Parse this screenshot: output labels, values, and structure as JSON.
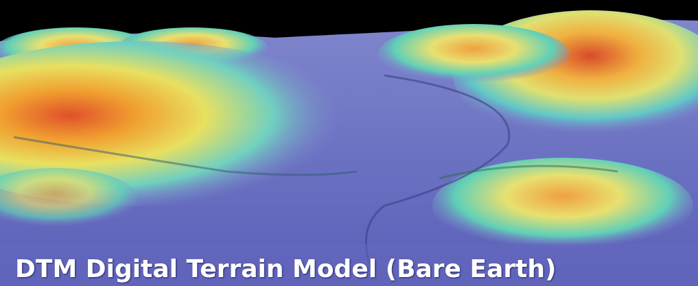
{
  "caption": "DTM Digital Terrain Model (Bare Earth)"
}
